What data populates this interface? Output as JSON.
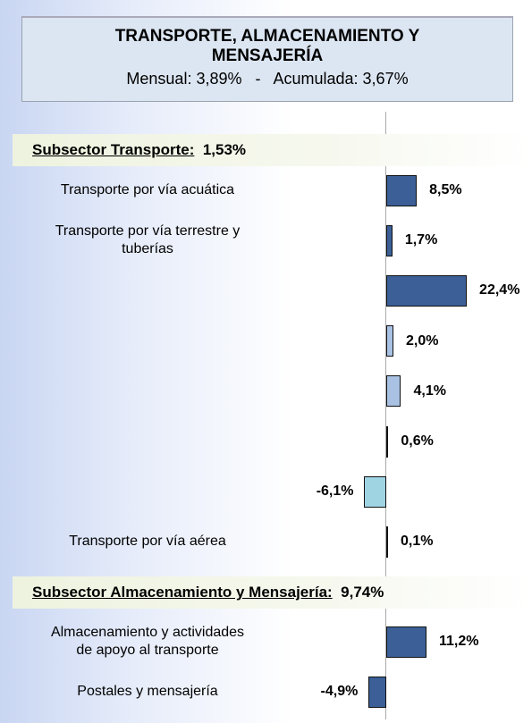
{
  "chart_data": {
    "type": "bar",
    "title": "TRANSPORTE, ALMACENAMIENTO Y MENSAJERÍA",
    "subtitle": "Mensual: 3,89%   -   Acumulada: 3,67%",
    "sections": [
      {
        "name": "Subsector Transporte:",
        "total_label": "1,53%",
        "categories": [
          "Transporte por vía acuática",
          "Transporte por vía terrestre y\ntuberías",
          null,
          null,
          null,
          null,
          null,
          "Transporte por vía aérea"
        ],
        "values": [
          8.5,
          1.7,
          22.4,
          2.0,
          4.1,
          0.6,
          -6.1,
          0.1
        ],
        "value_labels": [
          "8,5%",
          "1,7%",
          "22,4%",
          "2,0%",
          "4,1%",
          "0,6%",
          "-6,1%",
          "0,1%"
        ],
        "colors": [
          "#3b5f96",
          "#3b5f96",
          "#3b5f96",
          "#a9c2e3",
          "#a9c2e3",
          "#3b5f96",
          "#9fd4e3",
          "#3b5f96"
        ]
      },
      {
        "name": "Subsector Almacenamiento y Mensajería:",
        "total_label": "9,74%",
        "categories": [
          "Almacenamiento y actividades\nde apoyo al transporte",
          "Postales y mensajería"
        ],
        "values": [
          11.2,
          -4.9
        ],
        "value_labels": [
          "11,2%",
          "-4,9%"
        ],
        "colors": [
          "#3b5f96",
          "#3b5f96"
        ]
      }
    ]
  }
}
